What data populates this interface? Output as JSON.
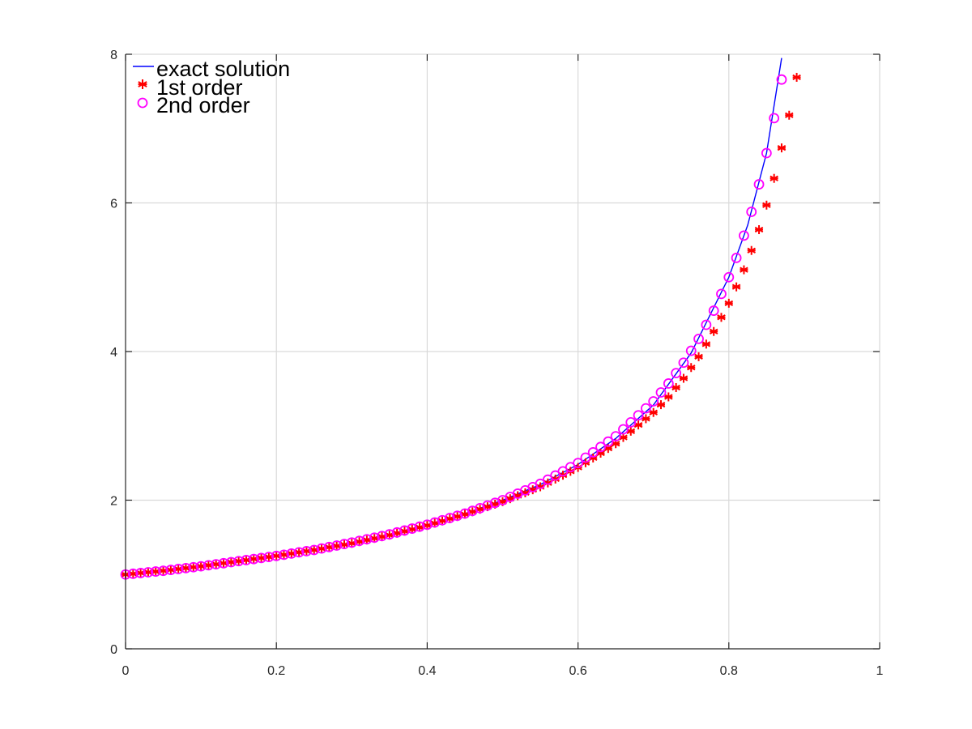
{
  "chart_data": {
    "type": "line",
    "title": "",
    "xlabel": "",
    "ylabel": "",
    "xlim": [
      0,
      1
    ],
    "ylim": [
      0,
      8
    ],
    "xticks": [
      0,
      0.2,
      0.4,
      0.6,
      0.8,
      1
    ],
    "xtick_labels": [
      "0",
      "0.2",
      "0.4",
      "0.6",
      "0.8",
      "1"
    ],
    "yticks": [
      0,
      2,
      4,
      6,
      8
    ],
    "ytick_labels": [
      "0",
      "2",
      "4",
      "6",
      "8"
    ],
    "grid": true,
    "legend_position": "top-left",
    "x": [
      0,
      0.05,
      0.1,
      0.15,
      0.2,
      0.25,
      0.3,
      0.35,
      0.4,
      0.45,
      0.5,
      0.55,
      0.6,
      0.65,
      0.7,
      0.75,
      0.8,
      0.85,
      0.89
    ],
    "series": [
      {
        "name": "exact solution",
        "style": "line",
        "color": "#0000ff",
        "x": [
          0,
          0.05,
          0.1,
          0.15,
          0.2,
          0.25,
          0.3,
          0.35,
          0.4,
          0.45,
          0.5,
          0.55,
          0.6,
          0.65,
          0.7,
          0.75,
          0.8,
          0.825,
          0.85,
          0.87
        ],
        "values": [
          1.0,
          1.05,
          1.12,
          1.18,
          1.25,
          1.33,
          1.43,
          1.54,
          1.67,
          1.82,
          2.0,
          2.21,
          2.48,
          2.83,
          3.28,
          3.98,
          5.0,
          5.7,
          6.67,
          7.95
        ]
      },
      {
        "name": "1st order",
        "style": "marker",
        "marker": "asterisk",
        "color": "#ff0000",
        "x": [
          0,
          0.05,
          0.1,
          0.15,
          0.2,
          0.25,
          0.3,
          0.35,
          0.4,
          0.45,
          0.5,
          0.55,
          0.6,
          0.65,
          0.7,
          0.72,
          0.74,
          0.76,
          0.78,
          0.8,
          0.81,
          0.82,
          0.83,
          0.84,
          0.85,
          0.86,
          0.87,
          0.88,
          0.89
        ],
        "values": [
          1.0,
          1.05,
          1.11,
          1.18,
          1.25,
          1.33,
          1.42,
          1.53,
          1.66,
          1.81,
          1.98,
          2.18,
          2.44,
          2.76,
          3.18,
          3.39,
          3.64,
          3.93,
          4.27,
          4.65,
          4.87,
          5.1,
          5.36,
          5.64,
          5.97,
          6.33,
          6.74,
          7.18,
          7.69
        ]
      },
      {
        "name": "2nd order",
        "style": "marker",
        "marker": "circle",
        "color": "#ff00ff",
        "x": [
          0,
          0.05,
          0.1,
          0.15,
          0.2,
          0.25,
          0.3,
          0.35,
          0.4,
          0.45,
          0.5,
          0.55,
          0.6,
          0.65,
          0.7,
          0.72,
          0.74,
          0.76,
          0.78,
          0.8,
          0.81,
          0.82,
          0.83,
          0.84,
          0.85,
          0.86,
          0.87
        ],
        "values": [
          1.0,
          1.05,
          1.11,
          1.18,
          1.25,
          1.33,
          1.43,
          1.54,
          1.67,
          1.82,
          2.0,
          2.22,
          2.5,
          2.86,
          3.33,
          3.57,
          3.85,
          4.17,
          4.55,
          5.0,
          5.26,
          5.56,
          5.88,
          6.25,
          6.67,
          7.14,
          7.66
        ]
      }
    ]
  },
  "style": {
    "grid_color": "#d9d9d9",
    "axis_color": "#262626",
    "background": "#ffffff"
  }
}
